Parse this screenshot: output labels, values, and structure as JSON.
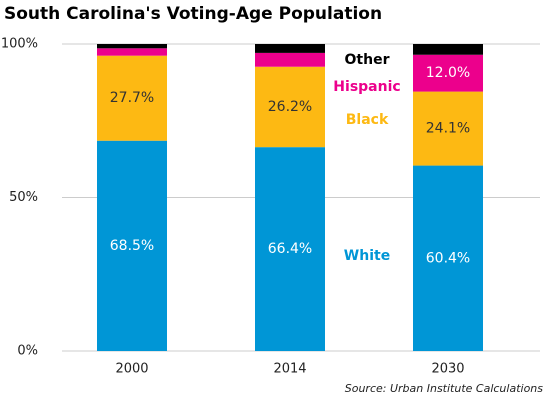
{
  "chart_data": {
    "type": "stacked_bar",
    "title": "South Carolina's Voting-Age Population",
    "source": "Source: Urban Institute  Calculations",
    "categories": [
      "2000",
      "2014",
      "2030"
    ],
    "series": [
      {
        "name": "White",
        "color": "#0096d6",
        "values": [
          68.5,
          66.4,
          60.4
        ],
        "value_labels": [
          "68.5%",
          "66.4%",
          "60.4%"
        ]
      },
      {
        "name": "Black",
        "color": "#fdb913",
        "values": [
          27.7,
          26.2,
          24.1
        ],
        "value_labels": [
          "27.7%",
          "26.2%",
          "24.1%"
        ]
      },
      {
        "name": "Hispanic",
        "color": "#ec008c",
        "values": [
          2.4,
          4.5,
          12.0
        ],
        "value_labels": [
          null,
          null,
          "12.0%"
        ]
      },
      {
        "name": "Other",
        "color": "#000000",
        "values": [
          1.4,
          2.9,
          3.5
        ],
        "value_labels": [
          null,
          null,
          null
        ]
      }
    ],
    "ylim": [
      0,
      100
    ],
    "yticks": [
      {
        "value": 0,
        "label": "0%"
      },
      {
        "value": 50,
        "label": "50%"
      },
      {
        "value": 100,
        "label": "100%"
      }
    ],
    "grid": true
  }
}
